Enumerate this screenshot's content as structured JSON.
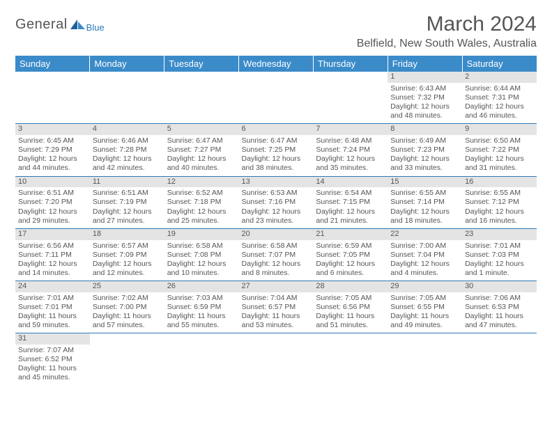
{
  "logo": {
    "text": "General",
    "sub": "Blue"
  },
  "title": "March 2024",
  "location": "Belfield, New South Wales, Australia",
  "colors": {
    "header_bg": "#3b8bc9",
    "daybar_bg": "#e4e4e4",
    "border": "#2b7ab8",
    "text": "#555555"
  },
  "typography": {
    "title_fontsize": 30,
    "location_fontsize": 16,
    "header_fontsize": 13,
    "cell_fontsize": 10.5
  },
  "day_headers": [
    "Sunday",
    "Monday",
    "Tuesday",
    "Wednesday",
    "Thursday",
    "Friday",
    "Saturday"
  ],
  "weeks": [
    [
      null,
      null,
      null,
      null,
      null,
      {
        "n": "1",
        "sunrise": "Sunrise: 6:43 AM",
        "sunset": "Sunset: 7:32 PM",
        "daylight": "Daylight: 12 hours and 48 minutes."
      },
      {
        "n": "2",
        "sunrise": "Sunrise: 6:44 AM",
        "sunset": "Sunset: 7:31 PM",
        "daylight": "Daylight: 12 hours and 46 minutes."
      }
    ],
    [
      {
        "n": "3",
        "sunrise": "Sunrise: 6:45 AM",
        "sunset": "Sunset: 7:29 PM",
        "daylight": "Daylight: 12 hours and 44 minutes."
      },
      {
        "n": "4",
        "sunrise": "Sunrise: 6:46 AM",
        "sunset": "Sunset: 7:28 PM",
        "daylight": "Daylight: 12 hours and 42 minutes."
      },
      {
        "n": "5",
        "sunrise": "Sunrise: 6:47 AM",
        "sunset": "Sunset: 7:27 PM",
        "daylight": "Daylight: 12 hours and 40 minutes."
      },
      {
        "n": "6",
        "sunrise": "Sunrise: 6:47 AM",
        "sunset": "Sunset: 7:25 PM",
        "daylight": "Daylight: 12 hours and 38 minutes."
      },
      {
        "n": "7",
        "sunrise": "Sunrise: 6:48 AM",
        "sunset": "Sunset: 7:24 PM",
        "daylight": "Daylight: 12 hours and 35 minutes."
      },
      {
        "n": "8",
        "sunrise": "Sunrise: 6:49 AM",
        "sunset": "Sunset: 7:23 PM",
        "daylight": "Daylight: 12 hours and 33 minutes."
      },
      {
        "n": "9",
        "sunrise": "Sunrise: 6:50 AM",
        "sunset": "Sunset: 7:22 PM",
        "daylight": "Daylight: 12 hours and 31 minutes."
      }
    ],
    [
      {
        "n": "10",
        "sunrise": "Sunrise: 6:51 AM",
        "sunset": "Sunset: 7:20 PM",
        "daylight": "Daylight: 12 hours and 29 minutes."
      },
      {
        "n": "11",
        "sunrise": "Sunrise: 6:51 AM",
        "sunset": "Sunset: 7:19 PM",
        "daylight": "Daylight: 12 hours and 27 minutes."
      },
      {
        "n": "12",
        "sunrise": "Sunrise: 6:52 AM",
        "sunset": "Sunset: 7:18 PM",
        "daylight": "Daylight: 12 hours and 25 minutes."
      },
      {
        "n": "13",
        "sunrise": "Sunrise: 6:53 AM",
        "sunset": "Sunset: 7:16 PM",
        "daylight": "Daylight: 12 hours and 23 minutes."
      },
      {
        "n": "14",
        "sunrise": "Sunrise: 6:54 AM",
        "sunset": "Sunset: 7:15 PM",
        "daylight": "Daylight: 12 hours and 21 minutes."
      },
      {
        "n": "15",
        "sunrise": "Sunrise: 6:55 AM",
        "sunset": "Sunset: 7:14 PM",
        "daylight": "Daylight: 12 hours and 18 minutes."
      },
      {
        "n": "16",
        "sunrise": "Sunrise: 6:55 AM",
        "sunset": "Sunset: 7:12 PM",
        "daylight": "Daylight: 12 hours and 16 minutes."
      }
    ],
    [
      {
        "n": "17",
        "sunrise": "Sunrise: 6:56 AM",
        "sunset": "Sunset: 7:11 PM",
        "daylight": "Daylight: 12 hours and 14 minutes."
      },
      {
        "n": "18",
        "sunrise": "Sunrise: 6:57 AM",
        "sunset": "Sunset: 7:09 PM",
        "daylight": "Daylight: 12 hours and 12 minutes."
      },
      {
        "n": "19",
        "sunrise": "Sunrise: 6:58 AM",
        "sunset": "Sunset: 7:08 PM",
        "daylight": "Daylight: 12 hours and 10 minutes."
      },
      {
        "n": "20",
        "sunrise": "Sunrise: 6:58 AM",
        "sunset": "Sunset: 7:07 PM",
        "daylight": "Daylight: 12 hours and 8 minutes."
      },
      {
        "n": "21",
        "sunrise": "Sunrise: 6:59 AM",
        "sunset": "Sunset: 7:05 PM",
        "daylight": "Daylight: 12 hours and 6 minutes."
      },
      {
        "n": "22",
        "sunrise": "Sunrise: 7:00 AM",
        "sunset": "Sunset: 7:04 PM",
        "daylight": "Daylight: 12 hours and 4 minutes."
      },
      {
        "n": "23",
        "sunrise": "Sunrise: 7:01 AM",
        "sunset": "Sunset: 7:03 PM",
        "daylight": "Daylight: 12 hours and 1 minute."
      }
    ],
    [
      {
        "n": "24",
        "sunrise": "Sunrise: 7:01 AM",
        "sunset": "Sunset: 7:01 PM",
        "daylight": "Daylight: 11 hours and 59 minutes."
      },
      {
        "n": "25",
        "sunrise": "Sunrise: 7:02 AM",
        "sunset": "Sunset: 7:00 PM",
        "daylight": "Daylight: 11 hours and 57 minutes."
      },
      {
        "n": "26",
        "sunrise": "Sunrise: 7:03 AM",
        "sunset": "Sunset: 6:59 PM",
        "daylight": "Daylight: 11 hours and 55 minutes."
      },
      {
        "n": "27",
        "sunrise": "Sunrise: 7:04 AM",
        "sunset": "Sunset: 6:57 PM",
        "daylight": "Daylight: 11 hours and 53 minutes."
      },
      {
        "n": "28",
        "sunrise": "Sunrise: 7:05 AM",
        "sunset": "Sunset: 6:56 PM",
        "daylight": "Daylight: 11 hours and 51 minutes."
      },
      {
        "n": "29",
        "sunrise": "Sunrise: 7:05 AM",
        "sunset": "Sunset: 6:55 PM",
        "daylight": "Daylight: 11 hours and 49 minutes."
      },
      {
        "n": "30",
        "sunrise": "Sunrise: 7:06 AM",
        "sunset": "Sunset: 6:53 PM",
        "daylight": "Daylight: 11 hours and 47 minutes."
      }
    ],
    [
      {
        "n": "31",
        "sunrise": "Sunrise: 7:07 AM",
        "sunset": "Sunset: 6:52 PM",
        "daylight": "Daylight: 11 hours and 45 minutes."
      },
      null,
      null,
      null,
      null,
      null,
      null
    ]
  ]
}
